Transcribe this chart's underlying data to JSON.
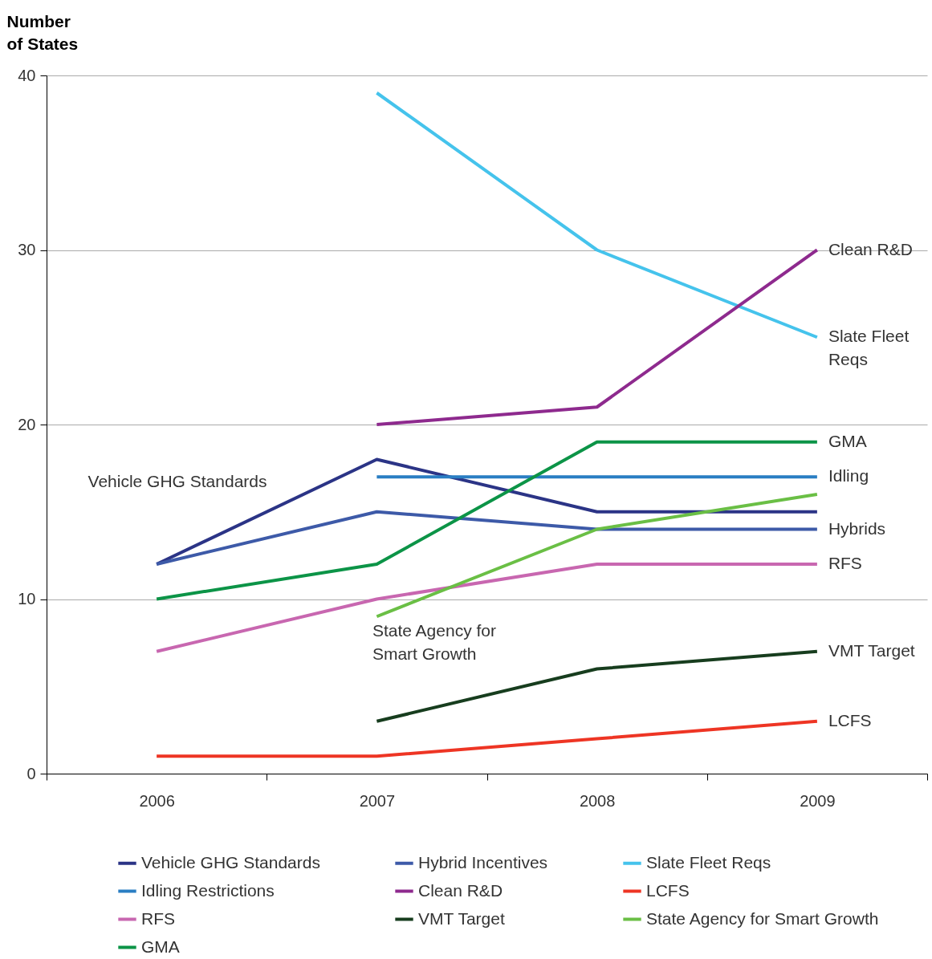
{
  "chart_data": {
    "type": "line",
    "ylabel": "Number of States",
    "categories": [
      "2006",
      "2007",
      "2008",
      "2009"
    ],
    "series": [
      {
        "name": "Vehicle GHG Standards",
        "color": "#2b3486",
        "values": [
          12,
          18,
          15,
          15
        ]
      },
      {
        "name": "Hybrid Incentives",
        "color": "#3d5aa8",
        "values": [
          12,
          15,
          14,
          14
        ]
      },
      {
        "name": "Slate Fleet Reqs",
        "color": "#45c3ec",
        "values": [
          null,
          39,
          30,
          25
        ]
      },
      {
        "name": "Idling Restrictions",
        "color": "#2a7ec3",
        "values": [
          null,
          17,
          17,
          17
        ]
      },
      {
        "name": "Clean R&D",
        "color": "#8e2a8e",
        "values": [
          null,
          20,
          21,
          30
        ]
      },
      {
        "name": "LCFS",
        "color": "#ee3524",
        "values": [
          1,
          1,
          2,
          3
        ]
      },
      {
        "name": "RFS",
        "color": "#c867b0",
        "values": [
          7,
          10,
          12,
          12
        ]
      },
      {
        "name": "VMT Target",
        "color": "#173d1e",
        "values": [
          null,
          3,
          6,
          7
        ]
      },
      {
        "name": "State Agency for Smart Growth",
        "color": "#6abf45",
        "values": [
          null,
          9,
          14,
          16
        ]
      },
      {
        "name": "GMA",
        "color": "#0c9447",
        "values": [
          10,
          12,
          19,
          19
        ]
      }
    ],
    "ylim": [
      0,
      40
    ],
    "yticks": [
      0,
      10,
      20,
      30,
      40
    ],
    "grid": "y",
    "legend": "bottom",
    "line_style": "solid",
    "marker": "none",
    "annotations": [
      {
        "text": "Clean R&D",
        "x": "2009",
        "y": 30
      },
      {
        "text": "Slate Fleet Reqs",
        "x": "2009",
        "y": 25
      },
      {
        "text": "GMA",
        "x": "2009",
        "y": 19
      },
      {
        "text": "Idling",
        "x": "2009",
        "y": 17
      },
      {
        "text": "Hybrids",
        "x": "2009",
        "y": 14
      },
      {
        "text": "RFS",
        "x": "2009",
        "y": 12
      },
      {
        "text": "VMT Target",
        "x": "2009",
        "y": 7
      },
      {
        "text": "LCFS",
        "x": "2009",
        "y": 3
      },
      "Vehicle GHG Standards",
      "State Agency for Smart Growth"
    ]
  }
}
